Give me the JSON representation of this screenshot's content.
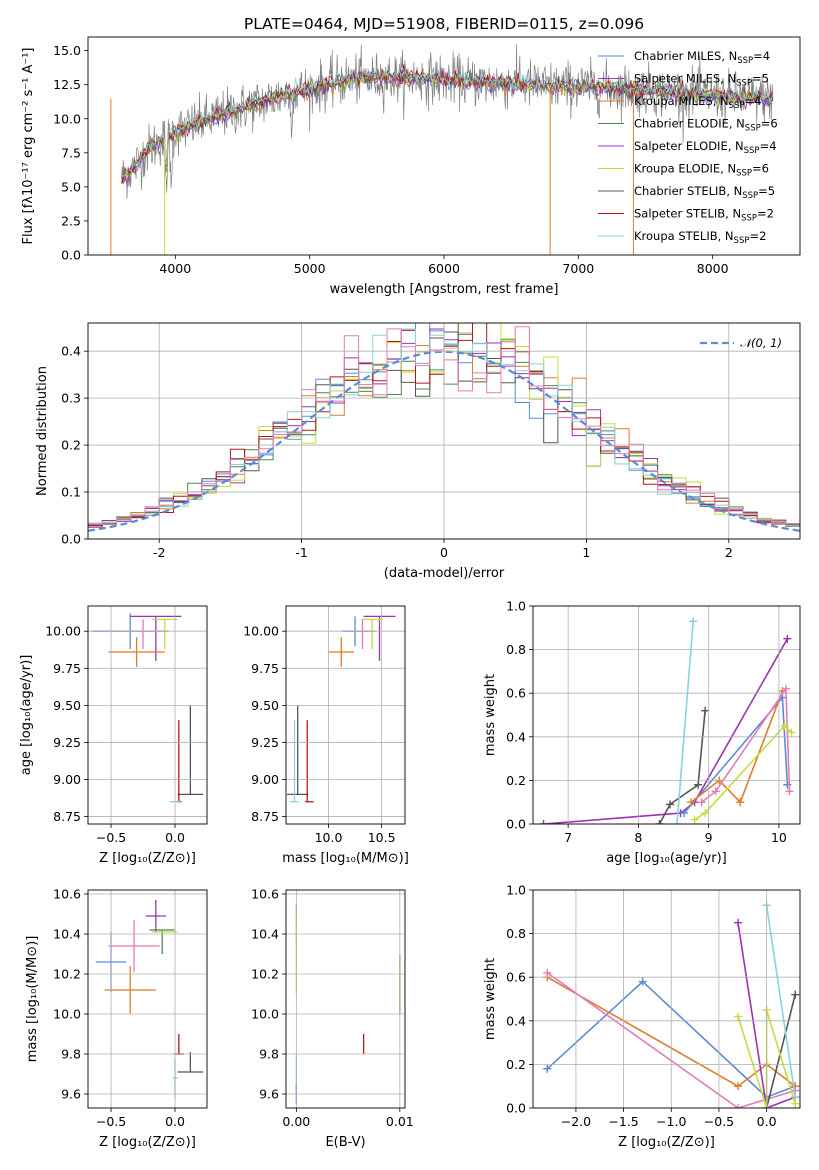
{
  "title": "PLATE=0464, MJD=51908, FIBERID=0115, z=0.096",
  "colors": {
    "chabrier_miles": "#5b8bd8",
    "salpeter_miles": "#9b32b4",
    "kroupa_miles": "#e07b28",
    "chabrier_elodie": "#4a8a4a",
    "salpeter_elodie": "#a03cc0",
    "kroupa_elodie": "#c6dd3c",
    "chabrier_stelib": "#555555",
    "salpeter_stelib": "#b01818",
    "kroupa_stelib": "#86d3dc",
    "pink": "#e879b8",
    "normal_curve": "#5b8bd8"
  },
  "chart_data": [
    {
      "id": "spectrum",
      "type": "line",
      "title": "PLATE=0464, MJD=51908, FIBERID=0115, z=0.096",
      "xlabel": "wavelength [Angstrom, rest frame]",
      "ylabel": "Flux [fλ10⁻¹⁷ erg cm⁻² s⁻¹ A⁻¹]",
      "xlim": [
        3350,
        8650
      ],
      "ylim": [
        0,
        16
      ],
      "xticks": [
        4000,
        5000,
        6000,
        7000,
        8000
      ],
      "yticks": [
        0.0,
        2.5,
        5.0,
        7.5,
        10.0,
        12.5,
        15.0
      ],
      "grid": false,
      "legend_position": "top-right",
      "continuum": [
        [
          3600,
          5.6
        ],
        [
          3700,
          6.5
        ],
        [
          3800,
          7.8
        ],
        [
          3900,
          8.4
        ],
        [
          4000,
          9.0
        ],
        [
          4200,
          9.8
        ],
        [
          4500,
          10.8
        ],
        [
          4800,
          11.7
        ],
        [
          5000,
          12.2
        ],
        [
          5300,
          12.9
        ],
        [
          5600,
          13.0
        ],
        [
          6000,
          12.9
        ],
        [
          6400,
          12.6
        ],
        [
          6800,
          12.4
        ],
        [
          7200,
          12.3
        ],
        [
          7600,
          12.0
        ],
        [
          8000,
          11.7
        ],
        [
          8400,
          11.5
        ]
      ],
      "series": [
        {
          "name": "Chabrier MILES, N",
          "sub": "SSP",
          "suffix": "=4",
          "color_key": "chabrier_miles"
        },
        {
          "name": "Salpeter MILES, N",
          "sub": "SSP",
          "suffix": "=5",
          "color_key": "salpeter_miles"
        },
        {
          "name": "Kroupa MILES, N",
          "sub": "SSP",
          "suffix": "=4",
          "color_key": "kroupa_miles"
        },
        {
          "name": "Chabrier ELODIE, N",
          "sub": "SSP",
          "suffix": "=6",
          "color_key": "chabrier_elodie"
        },
        {
          "name": "Salpeter ELODIE, N",
          "sub": "SSP",
          "suffix": "=4",
          "color_key": "salpeter_elodie"
        },
        {
          "name": "Kroupa ELODIE, N",
          "sub": "SSP",
          "suffix": "=6",
          "color_key": "kroupa_elodie"
        },
        {
          "name": "Chabrier STELIB, N",
          "sub": "SSP",
          "suffix": "=5",
          "color_key": "chabrier_stelib"
        },
        {
          "name": "Salpeter STELIB, N",
          "sub": "SSP",
          "suffix": "=2",
          "color_key": "salpeter_stelib"
        },
        {
          "name": "Kroupa STELIB, N",
          "sub": "SSP",
          "suffix": "=2",
          "color_key": "kroupa_stelib"
        }
      ]
    },
    {
      "id": "residuals",
      "type": "histogram",
      "xlabel": "(data-model)/error",
      "ylabel": "Normed distribution",
      "xlim": [
        -2.5,
        2.5
      ],
      "ylim": [
        0,
        0.46
      ],
      "xticks": [
        -2,
        -1,
        0,
        1,
        2
      ],
      "yticks": [
        0.0,
        0.1,
        0.2,
        0.3,
        0.4
      ],
      "grid": true,
      "legend_position": "top-right",
      "legend": "𝒩(0, 1)",
      "bin_width": 0.1
    },
    {
      "id": "age_vs_Z",
      "type": "errorbar",
      "xlabel": "Z [log₁₀(Z/Z⊙)]",
      "ylabel": "age  [log₁₀(age/yr)]",
      "xlim": [
        -0.68,
        0.25
      ],
      "ylim": [
        8.7,
        10.17
      ],
      "xticks": [
        -0.5,
        0.0
      ],
      "xticklabels": [
        "−0.5",
        "0.0"
      ],
      "yticks": [
        8.75,
        9.0,
        9.25,
        9.5,
        9.75,
        10.0
      ],
      "yticklabels": [
        "8.75",
        "9.00",
        "9.25",
        "9.50",
        "9.75",
        "10.00"
      ],
      "grid": true,
      "points": [
        {
          "x": -0.35,
          "y": 10.0,
          "xerr": [
            0.3,
            0.2
          ],
          "yerr": [
            0.12,
            0.12
          ],
          "color_key": "chabrier_miles"
        },
        {
          "x": -0.15,
          "y": 10.1,
          "xerr": [
            0.2,
            0.2
          ],
          "yerr": [
            0.3,
            0.0
          ],
          "color_key": "salpeter_miles"
        },
        {
          "x": -0.3,
          "y": 9.86,
          "xerr": [
            0.22,
            0.22
          ],
          "yerr": [
            0.1,
            0.1
          ],
          "color_key": "kroupa_miles"
        },
        {
          "x": -0.08,
          "y": 10.08,
          "xerr": [
            0.1,
            0.1
          ],
          "yerr": [
            0.2,
            0.0
          ],
          "color_key": "kroupa_elodie"
        },
        {
          "x": -0.25,
          "y": 10.0,
          "xerr": [
            0.2,
            0.2
          ],
          "yerr": [
            0.12,
            0.08
          ],
          "color_key": "pink"
        },
        {
          "x": 0.12,
          "y": 8.9,
          "xerr": [
            0.1,
            0.1
          ],
          "yerr": [
            0.0,
            0.6
          ],
          "color_key": "chabrier_stelib"
        },
        {
          "x": 0.03,
          "y": 8.85,
          "xerr": [
            0.02,
            0.02
          ],
          "yerr": [
            0.0,
            0.55
          ],
          "color_key": "salpeter_stelib"
        },
        {
          "x": 0.0,
          "y": 8.85,
          "xerr": [
            0.04,
            0.04
          ],
          "yerr": [
            0.0,
            0.0
          ],
          "color_key": "kroupa_stelib"
        }
      ]
    },
    {
      "id": "age_vs_mass",
      "type": "errorbar",
      "xlabel": "mass [log₁₀(M/M⊙)]",
      "xlim": [
        9.6,
        10.72
      ],
      "ylim": [
        8.7,
        10.17
      ],
      "xticks": [
        10.0,
        10.5
      ],
      "xticklabels": [
        "10.0",
        "10.5"
      ],
      "yticks": [
        8.75,
        9.0,
        9.25,
        9.5,
        9.75,
        10.0
      ],
      "yticklabels": [
        "8.75",
        "9.00",
        "9.25",
        "9.50",
        "9.75",
        "10.00"
      ],
      "grid": true,
      "points": [
        {
          "x": 10.25,
          "y": 10.0,
          "xerr": [
            0.12,
            0.12
          ],
          "yerr": [
            0.1,
            0.1
          ],
          "color_key": "chabrier_miles"
        },
        {
          "x": 10.48,
          "y": 10.1,
          "xerr": [
            0.15,
            0.15
          ],
          "yerr": [
            0.3,
            0.0
          ],
          "color_key": "salpeter_miles"
        },
        {
          "x": 10.12,
          "y": 9.86,
          "xerr": [
            0.12,
            0.12
          ],
          "yerr": [
            0.1,
            0.1
          ],
          "color_key": "kroupa_miles"
        },
        {
          "x": 10.41,
          "y": 10.08,
          "xerr": [
            0.1,
            0.1
          ],
          "yerr": [
            0.2,
            0.0
          ],
          "color_key": "kroupa_elodie"
        },
        {
          "x": 10.32,
          "y": 10.0,
          "xerr": [
            0.12,
            0.12
          ],
          "yerr": [
            0.12,
            0.08
          ],
          "color_key": "pink"
        },
        {
          "x": 9.71,
          "y": 8.9,
          "xerr": [
            0.1,
            0.1
          ],
          "yerr": [
            0.0,
            0.6
          ],
          "color_key": "chabrier_stelib"
        },
        {
          "x": 9.8,
          "y": 8.85,
          "xerr": [
            0.02,
            0.06
          ],
          "yerr": [
            0.0,
            0.55
          ],
          "color_key": "salpeter_stelib"
        },
        {
          "x": 9.68,
          "y": 8.85,
          "xerr": [
            0.04,
            0.04
          ],
          "yerr": [
            0.0,
            0.55
          ],
          "color_key": "kroupa_stelib"
        }
      ]
    },
    {
      "id": "weight_vs_age",
      "type": "line",
      "xlabel": "age  [log₁₀(age/yr)]",
      "ylabel": "mass weight",
      "xlim": [
        6.5,
        10.3
      ],
      "ylim": [
        0,
        1
      ],
      "xticks": [
        7,
        8,
        9,
        10
      ],
      "yticks": [
        0.0,
        0.2,
        0.4,
        0.6,
        0.8,
        1.0
      ],
      "grid": true,
      "series": [
        {
          "color_key": "salpeter_miles",
          "x": [
            6.65,
            8.6,
            8.8,
            10.12
          ],
          "y": [
            0.0,
            0.05,
            0.1,
            0.85
          ]
        },
        {
          "color_key": "chabrier_stelib",
          "x": [
            8.3,
            8.45,
            8.85,
            8.95
          ],
          "y": [
            0.0,
            0.09,
            0.18,
            0.52
          ]
        },
        {
          "color_key": "kroupa_stelib",
          "x": [
            8.55,
            8.78
          ],
          "y": [
            0.0,
            0.93
          ]
        },
        {
          "color_key": "chabrier_miles",
          "x": [
            8.65,
            10.05,
            10.12
          ],
          "y": [
            0.05,
            0.58,
            0.18
          ]
        },
        {
          "color_key": "kroupa_miles",
          "x": [
            8.75,
            9.15,
            9.45,
            10.05
          ],
          "y": [
            0.1,
            0.2,
            0.1,
            0.61
          ]
        },
        {
          "color_key": "pink",
          "x": [
            8.9,
            9.1,
            10.1,
            10.15
          ],
          "y": [
            0.1,
            0.15,
            0.62,
            0.15
          ]
        },
        {
          "color_key": "kroupa_elodie",
          "x": [
            8.8,
            8.95,
            10.08,
            10.18
          ],
          "y": [
            0.02,
            0.05,
            0.45,
            0.42
          ]
        }
      ]
    },
    {
      "id": "mass_vs_Z",
      "type": "errorbar",
      "xlabel": "Z [log₁₀(Z/Z⊙)]",
      "ylabel": "mass [log₁₀(M/M⊙)]",
      "xlim": [
        -0.68,
        0.25
      ],
      "ylim": [
        9.53,
        10.62
      ],
      "xticks": [
        -0.5,
        0.0
      ],
      "xticklabels": [
        "−0.5",
        "0.0"
      ],
      "yticks": [
        9.6,
        9.8,
        10.0,
        10.2,
        10.4,
        10.6
      ],
      "yticklabels": [
        "9.6",
        "9.8",
        "10.0",
        "10.2",
        "10.4",
        "10.6"
      ],
      "grid": true,
      "points": [
        {
          "x": -0.5,
          "y": 10.26,
          "xerr": [
            0.12,
            0.12
          ],
          "yerr": [
            0.15,
            0.15
          ],
          "color_key": "chabrier_miles"
        },
        {
          "x": -0.15,
          "y": 10.49,
          "xerr": [
            0.08,
            0.08
          ],
          "yerr": [
            0.08,
            0.08
          ],
          "color_key": "salpeter_miles"
        },
        {
          "x": -0.35,
          "y": 10.12,
          "xerr": [
            0.2,
            0.2
          ],
          "yerr": [
            0.12,
            0.12
          ],
          "color_key": "kroupa_miles"
        },
        {
          "x": -0.1,
          "y": 10.42,
          "xerr": [
            0.1,
            0.1
          ],
          "yerr": [
            0.12,
            0.0
          ],
          "color_key": "chabrier_elodie"
        },
        {
          "x": -0.08,
          "y": 10.41,
          "xerr": [
            0.1,
            0.1
          ],
          "yerr": [
            0.0,
            0.0
          ],
          "color_key": "kroupa_elodie"
        },
        {
          "x": -0.32,
          "y": 10.34,
          "xerr": [
            0.2,
            0.2
          ],
          "yerr": [
            0.13,
            0.13
          ],
          "color_key": "pink"
        },
        {
          "x": 0.12,
          "y": 9.71,
          "xerr": [
            0.1,
            0.1
          ],
          "yerr": [
            0.0,
            0.1
          ],
          "color_key": "chabrier_stelib"
        },
        {
          "x": 0.03,
          "y": 9.8,
          "xerr": [
            0.04,
            0.04
          ],
          "yerr": [
            0.0,
            0.1
          ],
          "color_key": "salpeter_stelib"
        },
        {
          "x": 0.0,
          "y": 9.68,
          "xerr": [
            0.02,
            0.02
          ],
          "yerr": [
            0.1,
            0.1
          ],
          "color_key": "kroupa_stelib"
        }
      ]
    },
    {
      "id": "mass_vs_ebv",
      "type": "errorbar",
      "xlabel": "E(B-V)",
      "xlim": [
        -0.001,
        0.0105
      ],
      "ylim": [
        9.53,
        10.62
      ],
      "xticks": [
        0.0,
        0.01
      ],
      "xticklabels": [
        "0.00",
        "0.01"
      ],
      "yticks": [
        9.6,
        9.8,
        10.0,
        10.2,
        10.4,
        10.6
      ],
      "yticklabels": [
        "9.6",
        "9.8",
        "10.0",
        "10.2",
        "10.4",
        "10.6"
      ],
      "grid": true,
      "points": [
        {
          "x": 0.0,
          "y": 10.45,
          "xerr": [
            0,
            0
          ],
          "yerr": [
            0.1,
            0.1
          ],
          "color_key": "pink"
        },
        {
          "x": 0.0,
          "y": 10.3,
          "xerr": [
            0,
            0
          ],
          "yerr": [
            0.2,
            0.2
          ],
          "color_key": "kroupa_elodie"
        },
        {
          "x": 0.0,
          "y": 9.7,
          "xerr": [
            0,
            0
          ],
          "yerr": [
            0.1,
            0.1
          ],
          "color_key": "kroupa_stelib"
        },
        {
          "x": 0.0,
          "y": 9.6,
          "xerr": [
            0,
            0
          ],
          "yerr": [
            0.05,
            0.05
          ],
          "color_key": "chabrier_miles"
        },
        {
          "x": 0.0065,
          "y": 9.85,
          "xerr": [
            0,
            0
          ],
          "yerr": [
            0.05,
            0.05
          ],
          "color_key": "salpeter_stelib"
        },
        {
          "x": 0.01,
          "y": 10.15,
          "xerr": [
            0,
            0
          ],
          "yerr": [
            0.15,
            0.15
          ],
          "color_key": "kroupa_miles"
        }
      ]
    },
    {
      "id": "weight_vs_Z",
      "type": "line",
      "xlabel": "Z [log₁₀(Z/Z⊙)]",
      "ylabel": "mass weight",
      "xlim": [
        -2.45,
        0.35
      ],
      "ylim": [
        0,
        1
      ],
      "xticks": [
        -2.0,
        -1.5,
        -1.0,
        -0.5,
        0.0
      ],
      "xticklabels": [
        "−2.0",
        "−1.5",
        "−1.0",
        "−0.5",
        "0.0"
      ],
      "yticks": [
        0.0,
        0.2,
        0.4,
        0.6,
        0.8,
        1.0
      ],
      "grid": true,
      "series": [
        {
          "color_key": "chabrier_miles",
          "x": [
            -2.3,
            -1.3,
            0.0,
            0.3
          ],
          "y": [
            0.18,
            0.58,
            0.05,
            0.1
          ]
        },
        {
          "color_key": "kroupa_miles",
          "x": [
            -2.3,
            -0.3,
            0.0,
            0.3
          ],
          "y": [
            0.6,
            0.1,
            0.2,
            0.1
          ]
        },
        {
          "color_key": "pink",
          "x": [
            -2.3,
            -0.3,
            0.3
          ],
          "y": [
            0.62,
            0.0,
            0.08
          ]
        },
        {
          "color_key": "salpeter_miles",
          "x": [
            -0.3,
            0.0,
            0.3
          ],
          "y": [
            0.85,
            0.0,
            0.05
          ]
        },
        {
          "color_key": "chabrier_stelib",
          "x": [
            0.0,
            0.3
          ],
          "y": [
            0.0,
            0.52
          ]
        },
        {
          "color_key": "kroupa_stelib",
          "x": [
            0.0,
            0.3
          ],
          "y": [
            0.93,
            0.05
          ]
        },
        {
          "color_key": "kroupa_elodie",
          "x": [
            -0.3,
            0.0,
            0.0,
            0.3
          ],
          "y": [
            0.42,
            0.0,
            0.45,
            0.02
          ]
        }
      ]
    }
  ]
}
